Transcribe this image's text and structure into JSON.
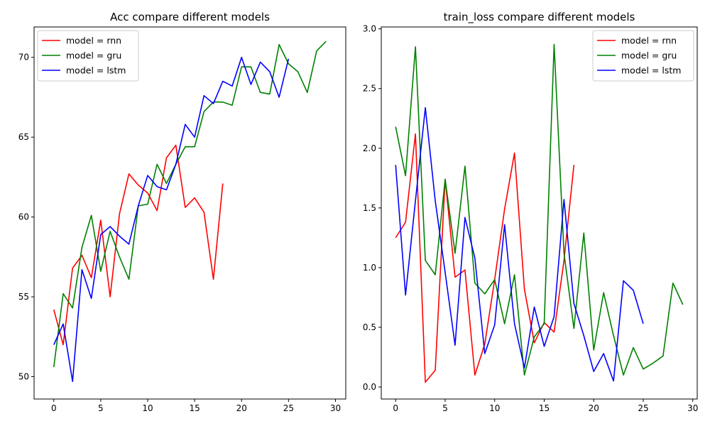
{
  "chart_data": [
    {
      "type": "line",
      "title": "Acc compare different models",
      "xlabel": "",
      "ylabel": "",
      "xlim": [
        -2.1,
        31.1
      ],
      "ylim": [
        48.6,
        71.9
      ],
      "xticks": [
        0,
        5,
        10,
        15,
        20,
        25,
        30
      ],
      "yticks": [
        50,
        55,
        60,
        65,
        70
      ],
      "grid": false,
      "legend_position": "top-left",
      "series": [
        {
          "name": "model = rnn",
          "color": "#ff0000",
          "x": [
            0,
            1,
            2,
            3,
            4,
            5,
            6,
            7,
            8,
            9,
            10,
            11,
            12,
            13,
            14,
            15,
            16,
            17,
            18
          ],
          "y": [
            54.2,
            52.0,
            56.8,
            57.6,
            56.2,
            59.8,
            55.0,
            60.2,
            62.7,
            62.0,
            61.5,
            60.4,
            63.7,
            64.5,
            60.6,
            61.2,
            60.3,
            56.1,
            62.1
          ]
        },
        {
          "name": "model = gru",
          "color": "#008000",
          "x": [
            0,
            1,
            2,
            3,
            4,
            5,
            6,
            7,
            8,
            9,
            10,
            11,
            12,
            13,
            14,
            15,
            16,
            17,
            18,
            19,
            20,
            21,
            22,
            23,
            24,
            25,
            26,
            27,
            28,
            29
          ],
          "y": [
            50.6,
            55.2,
            54.3,
            58.1,
            60.1,
            56.6,
            59.1,
            57.5,
            56.1,
            60.7,
            60.8,
            63.3,
            62.1,
            63.3,
            64.4,
            64.4,
            66.6,
            67.2,
            67.2,
            67.0,
            69.4,
            69.4,
            67.8,
            67.7,
            70.8,
            69.6,
            69.1,
            67.8,
            70.4,
            71.0
          ]
        },
        {
          "name": "model = lstm",
          "color": "#0000ff",
          "x": [
            0,
            1,
            2,
            3,
            4,
            5,
            6,
            7,
            8,
            9,
            10,
            11,
            12,
            13,
            14,
            15,
            16,
            17,
            18,
            19,
            20,
            21,
            22,
            23,
            24,
            25
          ],
          "y": [
            52.0,
            53.3,
            49.7,
            56.7,
            54.9,
            58.9,
            59.4,
            58.8,
            58.3,
            60.7,
            62.6,
            61.9,
            61.7,
            63.3,
            65.8,
            65.0,
            67.6,
            67.1,
            68.5,
            68.2,
            70.0,
            68.3,
            69.7,
            69.1,
            67.5,
            69.9
          ]
        }
      ]
    },
    {
      "type": "line",
      "title": "train_loss compare different models",
      "xlabel": "",
      "ylabel": "",
      "xlim": [
        -1.45,
        30.45
      ],
      "ylim": [
        -0.101,
        3.016
      ],
      "xticks": [
        0,
        5,
        10,
        15,
        20,
        25,
        30
      ],
      "yticks": [
        0.0,
        0.5,
        1.0,
        1.5,
        2.0,
        2.5,
        3.0
      ],
      "ytick_labels": [
        "0.0",
        "0.5",
        "1.0",
        "1.5",
        "2.0",
        "2.5",
        "3.0"
      ],
      "grid": false,
      "legend_position": "top-right",
      "series": [
        {
          "name": "model = rnn",
          "color": "#ff0000",
          "x": [
            0,
            1,
            2,
            3,
            4,
            5,
            6,
            7,
            8,
            9,
            10,
            11,
            12,
            13,
            14,
            15,
            16,
            17,
            18
          ],
          "y": [
            1.25,
            1.38,
            2.12,
            0.04,
            0.14,
            1.74,
            0.92,
            0.98,
            0.1,
            0.36,
            0.9,
            1.49,
            1.96,
            0.82,
            0.37,
            0.54,
            0.46,
            1.06,
            1.86
          ]
        },
        {
          "name": "model = gru",
          "color": "#008000",
          "x": [
            0,
            1,
            2,
            3,
            4,
            5,
            6,
            7,
            8,
            9,
            10,
            11,
            12,
            13,
            14,
            15,
            16,
            17,
            18,
            19,
            20,
            21,
            22,
            23,
            24,
            25,
            26,
            27,
            28,
            29
          ],
          "y": [
            2.18,
            1.77,
            2.85,
            1.06,
            0.94,
            1.74,
            1.12,
            1.85,
            0.87,
            0.78,
            0.9,
            0.53,
            0.94,
            0.1,
            0.42,
            0.53,
            2.87,
            1.12,
            0.49,
            1.29,
            0.31,
            0.79,
            0.43,
            0.1,
            0.33,
            0.15,
            0.2,
            0.26,
            0.87,
            0.69
          ]
        },
        {
          "name": "model = lstm",
          "color": "#0000ff",
          "x": [
            0,
            1,
            2,
            3,
            4,
            5,
            6,
            7,
            8,
            9,
            10,
            11,
            12,
            13,
            14,
            15,
            16,
            17,
            18,
            19,
            20,
            21,
            22,
            23,
            24,
            25
          ],
          "y": [
            1.86,
            0.77,
            1.56,
            2.34,
            1.56,
            0.96,
            0.35,
            1.42,
            1.08,
            0.28,
            0.52,
            1.36,
            0.53,
            0.16,
            0.67,
            0.34,
            0.59,
            1.57,
            0.7,
            0.43,
            0.13,
            0.28,
            0.05,
            0.89,
            0.81,
            0.53
          ]
        }
      ]
    }
  ]
}
